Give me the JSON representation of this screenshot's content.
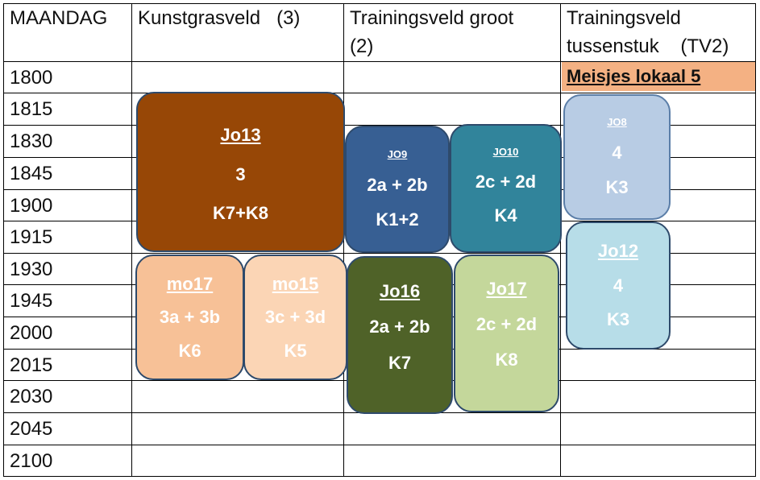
{
  "header": {
    "day": "MAANDAG",
    "col1": "Kunstgrasveld   (3)",
    "col2_line1": "Trainingsveld groot",
    "col2_line2": "(2)",
    "col3_line1": "Trainingsveld",
    "col3_line2": "tussenstuk    (TV2)"
  },
  "times": [
    "1800",
    "1815",
    "1830",
    "1845",
    "1900",
    "1915",
    "1930",
    "1945",
    "2000",
    "2015",
    "2030",
    "2045",
    "2100"
  ],
  "room_label": "Meisjes lokaal 5",
  "blocks": {
    "jo13": {
      "team": "Jo13",
      "field": "3",
      "rooms": "K7+K8",
      "color": "#974706"
    },
    "jo9": {
      "team": "JO9",
      "field": "2a + 2b",
      "rooms": "K1+2",
      "color": "#375f93"
    },
    "jo10": {
      "team": "JO10",
      "field": "2c + 2d",
      "rooms": "K4",
      "color": "#31849b"
    },
    "jo8": {
      "team": "JO8",
      "field": "4",
      "rooms": "K3",
      "color": "#b8cce4"
    },
    "mo17": {
      "team": "mo17",
      "field": "3a + 3b",
      "rooms": "K6",
      "color": "#f7c197"
    },
    "mo15": {
      "team": "mo15",
      "field": "3c + 3d",
      "rooms": "K5",
      "color": "#fbd5b5"
    },
    "jo16": {
      "team": "Jo16",
      "field": "2a + 2b",
      "rooms": "K7",
      "color": "#4f6228"
    },
    "jo17": {
      "team": "Jo17",
      "field": "2c + 2d",
      "rooms": "K8",
      "color": "#c4d79b"
    },
    "jo12": {
      "team": "Jo12",
      "field": "4",
      "rooms": "K3",
      "color": "#b7dde8"
    }
  }
}
